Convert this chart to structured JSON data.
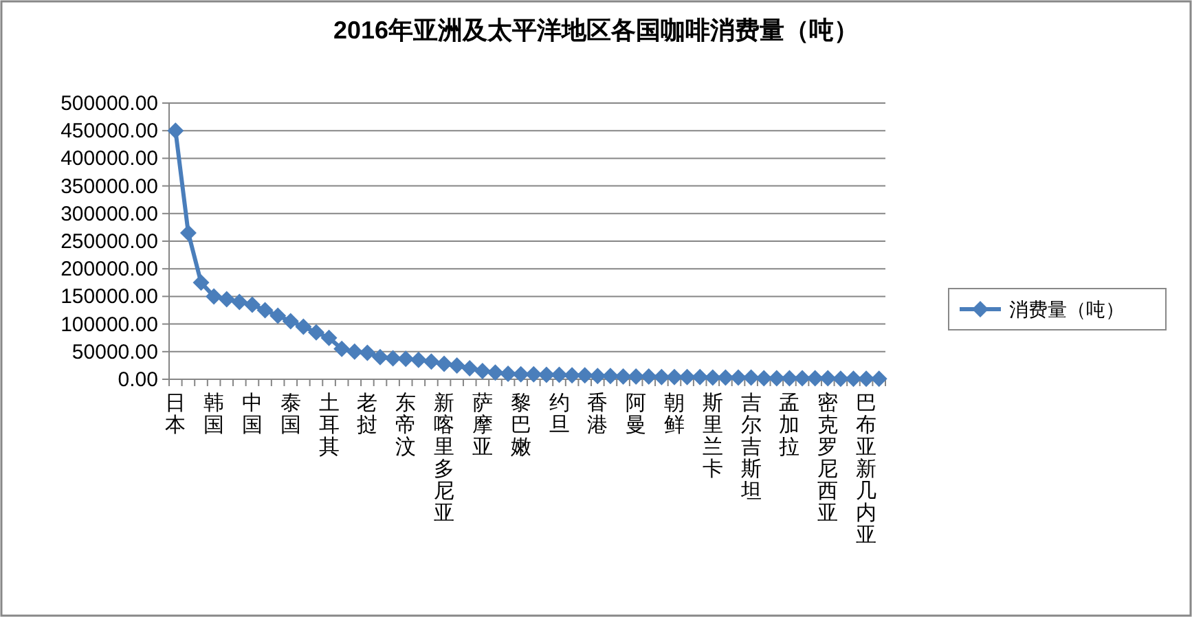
{
  "chart_data": {
    "type": "line",
    "title": "2016年亚洲及太平洋地区各国咖啡消费量（吨）",
    "categories": [
      "日本",
      null,
      null,
      "韩国",
      null,
      null,
      "中国",
      null,
      null,
      "泰国",
      null,
      null,
      "土耳其",
      null,
      null,
      "老挝",
      null,
      null,
      "东帝汶",
      null,
      null,
      "新喀里多尼亚",
      null,
      null,
      "萨摩亚",
      null,
      null,
      "黎巴嫩",
      null,
      null,
      "约旦",
      null,
      null,
      "香港",
      null,
      null,
      "阿曼",
      null,
      null,
      "朝鲜",
      null,
      null,
      "斯里兰卡",
      null,
      null,
      "吉尔吉斯坦",
      null,
      null,
      "孟加拉",
      null,
      null,
      "密克罗尼西亚",
      null,
      null,
      "巴布亚新几内亚",
      null
    ],
    "series": [
      {
        "name": "消费量（吨）",
        "color": "#4a7ebb",
        "values": [
          450000,
          265000,
          175000,
          150000,
          145000,
          140000,
          135000,
          125000,
          115000,
          105000,
          95000,
          85000,
          75000,
          55000,
          50000,
          48000,
          40000,
          38000,
          37000,
          35000,
          32000,
          28000,
          25000,
          20000,
          15000,
          12000,
          10000,
          9000,
          9000,
          8000,
          8000,
          7000,
          7000,
          6000,
          6000,
          5000,
          5000,
          5000,
          4000,
          4000,
          4000,
          4000,
          3000,
          3000,
          3000,
          3000,
          2000,
          2000,
          2000,
          2000,
          2000,
          2000,
          1000,
          1000,
          1000,
          1000
        ]
      }
    ],
    "ylim": [
      0,
      500000
    ],
    "yticks": [
      {
        "value": 0,
        "label": "0.00"
      },
      {
        "value": 50000,
        "label": "50000.00"
      },
      {
        "value": 100000,
        "label": "100000.00"
      },
      {
        "value": 150000,
        "label": "150000.00"
      },
      {
        "value": 200000,
        "label": "200000.00"
      },
      {
        "value": 250000,
        "label": "250000.00"
      },
      {
        "value": 300000,
        "label": "300000.00"
      },
      {
        "value": 350000,
        "label": "350000.00"
      },
      {
        "value": 400000,
        "label": "400000.00"
      },
      {
        "value": 450000,
        "label": "450000.00"
      },
      {
        "value": 500000,
        "label": "500000.00"
      }
    ],
    "grid": "y",
    "legend": "right",
    "marker": "diamond",
    "line_style": "solid"
  }
}
